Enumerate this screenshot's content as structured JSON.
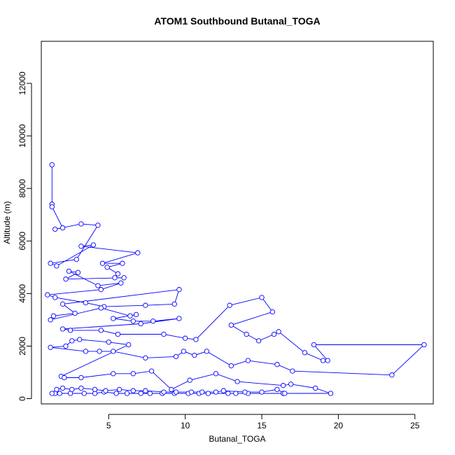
{
  "chart_data": {
    "type": "scatter",
    "title": "ATOM1 Southbound Butanal_TOGA",
    "xlabel": "Butanal_TOGA",
    "ylabel": "Altitude (m)",
    "xlim": [
      0.6,
      26.2
    ],
    "ylim": [
      -200,
      13600
    ],
    "xticks": [
      5,
      10,
      15,
      20,
      25
    ],
    "yticks": [
      0,
      2000,
      4000,
      6000,
      8000,
      10000,
      12000
    ],
    "grid": false,
    "connected": true,
    "color": "#0000ff",
    "series": [
      {
        "values": [
          [
            1.3,
            8900
          ],
          [
            1.3,
            7400
          ],
          [
            1.3,
            7300
          ],
          [
            2.0,
            6500
          ],
          [
            1.5,
            6450
          ],
          [
            3.2,
            6650
          ],
          [
            4.3,
            6600
          ],
          [
            2.9,
            5300
          ],
          [
            1.2,
            5150
          ],
          [
            1.6,
            5050
          ],
          [
            4.0,
            5850
          ],
          [
            3.2,
            5800
          ],
          [
            6.9,
            5550
          ],
          [
            4.6,
            5150
          ],
          [
            5.9,
            5150
          ],
          [
            4.9,
            5000
          ],
          [
            5.6,
            4750
          ],
          [
            5.4,
            4600
          ],
          [
            6.0,
            4600
          ],
          [
            2.2,
            4550
          ],
          [
            3.0,
            4800
          ],
          [
            2.4,
            4850
          ],
          [
            4.3,
            4300
          ],
          [
            5.8,
            4400
          ],
          [
            4.5,
            4150
          ],
          [
            1.0,
            3950
          ],
          [
            1.5,
            3850
          ],
          [
            3.5,
            3650
          ],
          [
            4.7,
            3500
          ],
          [
            7.4,
            3550
          ],
          [
            9.3,
            3600
          ],
          [
            9.6,
            4150
          ],
          [
            2.0,
            3600
          ],
          [
            2.8,
            3250
          ],
          [
            1.4,
            3150
          ],
          [
            1.2,
            3000
          ],
          [
            4.5,
            3450
          ],
          [
            6.4,
            3150
          ],
          [
            6.8,
            3200
          ],
          [
            5.3,
            3050
          ],
          [
            6.6,
            2950
          ],
          [
            7.9,
            2950
          ],
          [
            9.6,
            3050
          ],
          [
            7.1,
            2850
          ],
          [
            2.0,
            2650
          ],
          [
            2.5,
            2600
          ],
          [
            4.5,
            2600
          ],
          [
            5.6,
            2450
          ],
          [
            8.6,
            2450
          ],
          [
            10.0,
            2300
          ],
          [
            10.7,
            2250
          ],
          [
            12.9,
            3550
          ],
          [
            15.0,
            3850
          ],
          [
            15.7,
            3300
          ],
          [
            13.0,
            2800
          ],
          [
            14.0,
            2450
          ],
          [
            14.8,
            2200
          ],
          [
            15.8,
            2450
          ],
          [
            16.1,
            2550
          ],
          [
            17.8,
            1750
          ],
          [
            19.0,
            1450
          ],
          [
            19.3,
            1450
          ],
          [
            18.4,
            2050
          ],
          [
            25.6,
            2050
          ],
          [
            23.5,
            900
          ],
          [
            17.0,
            1050
          ],
          [
            16.0,
            1300
          ],
          [
            14.1,
            1450
          ],
          [
            13.0,
            1250
          ],
          [
            11.4,
            1800
          ],
          [
            10.6,
            1650
          ],
          [
            9.9,
            1800
          ],
          [
            9.4,
            1600
          ],
          [
            7.4,
            1550
          ],
          [
            5.3,
            1800
          ],
          [
            4.4,
            1800
          ],
          [
            3.5,
            1800
          ],
          [
            1.2,
            1950
          ],
          [
            2.2,
            2000
          ],
          [
            2.6,
            2200
          ],
          [
            3.1,
            2250
          ],
          [
            5.0,
            2150
          ],
          [
            6.3,
            2050
          ],
          [
            1.9,
            850
          ],
          [
            2.1,
            800
          ],
          [
            3.2,
            800
          ],
          [
            5.3,
            950
          ],
          [
            6.6,
            950
          ],
          [
            7.8,
            1050
          ],
          [
            9.1,
            350
          ],
          [
            10.3,
            700
          ],
          [
            12.0,
            950
          ],
          [
            13.4,
            650
          ],
          [
            16.4,
            500
          ],
          [
            16.9,
            550
          ],
          [
            18.5,
            400
          ],
          [
            19.5,
            200
          ],
          [
            16.4,
            200
          ],
          [
            14.1,
            200
          ],
          [
            13.3,
            200
          ],
          [
            12.8,
            200
          ],
          [
            11.5,
            200
          ],
          [
            10.9,
            200
          ],
          [
            10.2,
            200
          ],
          [
            9.3,
            200
          ],
          [
            8.5,
            200
          ],
          [
            7.7,
            200
          ],
          [
            7.1,
            200
          ],
          [
            6.2,
            200
          ],
          [
            5.5,
            200
          ],
          [
            4.7,
            250
          ],
          [
            4.1,
            200
          ],
          [
            3.4,
            200
          ],
          [
            2.5,
            200
          ],
          [
            1.8,
            200
          ],
          [
            1.5,
            200
          ],
          [
            1.3,
            200
          ],
          [
            1.6,
            350
          ],
          [
            2.0,
            400
          ],
          [
            2.6,
            350
          ],
          [
            3.2,
            400
          ],
          [
            4.1,
            350
          ],
          [
            4.8,
            300
          ],
          [
            5.7,
            350
          ],
          [
            6.6,
            300
          ],
          [
            7.4,
            300
          ],
          [
            8.6,
            250
          ],
          [
            9.4,
            250
          ],
          [
            10.4,
            250
          ],
          [
            11.1,
            250
          ],
          [
            12.0,
            250
          ],
          [
            12.5,
            300
          ],
          [
            13.9,
            250
          ],
          [
            15.0,
            250
          ],
          [
            16.0,
            350
          ],
          [
            16.5,
            200
          ]
        ]
      }
    ]
  }
}
